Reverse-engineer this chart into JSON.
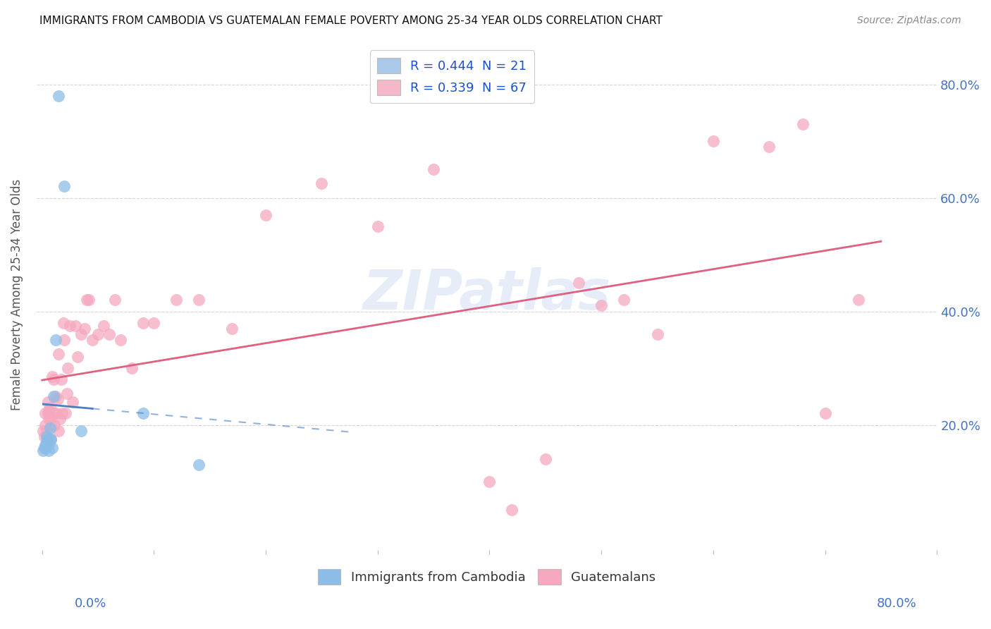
{
  "title": "IMMIGRANTS FROM CAMBODIA VS GUATEMALAN FEMALE POVERTY AMONG 25-34 YEAR OLDS CORRELATION CHART",
  "source": "Source: ZipAtlas.com",
  "ylabel": "Female Poverty Among 25-34 Year Olds",
  "ytick_labels": [
    "20.0%",
    "40.0%",
    "60.0%",
    "80.0%"
  ],
  "ytick_values": [
    0.2,
    0.4,
    0.6,
    0.8
  ],
  "xlim": [
    -0.005,
    0.8
  ],
  "ylim": [
    -0.02,
    0.88
  ],
  "legend_entries": [
    {
      "label_r": "R = 0.444",
      "label_n": "  N = 21",
      "color": "#aac8ea"
    },
    {
      "label_r": "R = 0.339",
      "label_n": "  N = 67",
      "color": "#f5b8c8"
    }
  ],
  "cambodia_color": "#8bbde8",
  "guatemalan_color": "#f5a8be",
  "trendline_cambodia_color": "#4a7fc1",
  "trendline_guatemalan_color": "#e06080",
  "watermark": "ZIPatlas",
  "cambodia_x": [
    0.001,
    0.002,
    0.003,
    0.003,
    0.004,
    0.004,
    0.005,
    0.005,
    0.006,
    0.006,
    0.007,
    0.007,
    0.008,
    0.009,
    0.01,
    0.012,
    0.015,
    0.02,
    0.035,
    0.09,
    0.14
  ],
  "cambodia_y": [
    0.155,
    0.16,
    0.16,
    0.165,
    0.17,
    0.18,
    0.17,
    0.175,
    0.155,
    0.165,
    0.175,
    0.195,
    0.175,
    0.16,
    0.25,
    0.35,
    0.78,
    0.62,
    0.19,
    0.22,
    0.13
  ],
  "guatemalan_x": [
    0.001,
    0.002,
    0.003,
    0.003,
    0.004,
    0.004,
    0.005,
    0.005,
    0.006,
    0.006,
    0.007,
    0.007,
    0.008,
    0.008,
    0.009,
    0.01,
    0.01,
    0.011,
    0.012,
    0.013,
    0.014,
    0.015,
    0.015,
    0.016,
    0.017,
    0.018,
    0.019,
    0.02,
    0.021,
    0.022,
    0.023,
    0.025,
    0.027,
    0.03,
    0.032,
    0.035,
    0.038,
    0.04,
    0.042,
    0.045,
    0.05,
    0.055,
    0.06,
    0.065,
    0.07,
    0.08,
    0.09,
    0.1,
    0.12,
    0.14,
    0.17,
    0.2,
    0.25,
    0.3,
    0.35,
    0.4,
    0.42,
    0.45,
    0.48,
    0.5,
    0.52,
    0.55,
    0.6,
    0.65,
    0.68,
    0.7,
    0.73
  ],
  "guatemalan_y": [
    0.19,
    0.18,
    0.2,
    0.22,
    0.175,
    0.19,
    0.22,
    0.24,
    0.21,
    0.225,
    0.215,
    0.23,
    0.175,
    0.2,
    0.285,
    0.22,
    0.28,
    0.2,
    0.25,
    0.22,
    0.245,
    0.19,
    0.325,
    0.21,
    0.28,
    0.22,
    0.38,
    0.35,
    0.22,
    0.255,
    0.3,
    0.375,
    0.24,
    0.375,
    0.32,
    0.36,
    0.37,
    0.42,
    0.42,
    0.35,
    0.36,
    0.375,
    0.36,
    0.42,
    0.35,
    0.3,
    0.38,
    0.38,
    0.42,
    0.42,
    0.37,
    0.57,
    0.625,
    0.55,
    0.65,
    0.1,
    0.05,
    0.14,
    0.45,
    0.41,
    0.42,
    0.36,
    0.7,
    0.69,
    0.73,
    0.22,
    0.42
  ]
}
